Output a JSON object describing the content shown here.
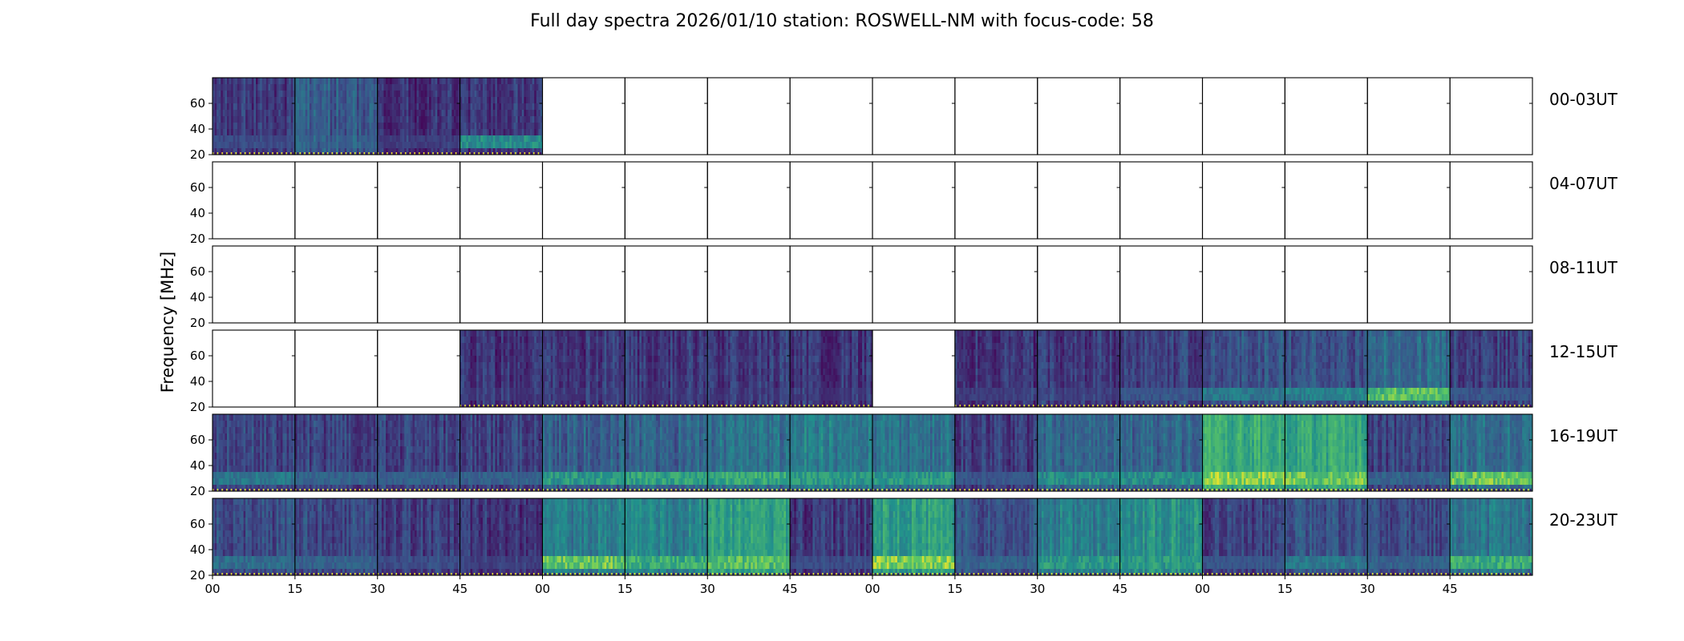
{
  "chart_data": {
    "type": "heatmap",
    "title": "Full day spectra 2026/01/10 station: ROSWELL-NM with focus-code: 58",
    "ylabel": "Frequency [MHz]",
    "xlabel": "",
    "ylim": [
      20,
      80
    ],
    "y_ticks": [
      "20",
      "40",
      "60"
    ],
    "x_tick_labels": [
      "00",
      "15",
      "30",
      "45",
      "00",
      "15",
      "30",
      "45",
      "00",
      "15",
      "30",
      "45",
      "00",
      "15",
      "30",
      "45"
    ],
    "colormap": "viridis",
    "colormap_stops": [
      "#440154",
      "#3b528b",
      "#21918c",
      "#5ec962",
      "#fde725"
    ],
    "panels_per_row": 16,
    "panel_minutes": 15,
    "rows": [
      {
        "label": "00-03UT",
        "panels": [
          {
            "has_data": true,
            "intensity": 0.16,
            "low_band": 0.25
          },
          {
            "has_data": true,
            "intensity": 0.28,
            "low_band": 0.3
          },
          {
            "has_data": true,
            "intensity": 0.14,
            "low_band": 0.2
          },
          {
            "has_data": true,
            "intensity": 0.16,
            "low_band": 0.55
          },
          {
            "has_data": false
          },
          {
            "has_data": false
          },
          {
            "has_data": false
          },
          {
            "has_data": false
          },
          {
            "has_data": false
          },
          {
            "has_data": false
          },
          {
            "has_data": false
          },
          {
            "has_data": false
          },
          {
            "has_data": false
          },
          {
            "has_data": false
          },
          {
            "has_data": false
          },
          {
            "has_data": false
          }
        ]
      },
      {
        "label": "04-07UT",
        "panels": [
          {
            "has_data": false
          },
          {
            "has_data": false
          },
          {
            "has_data": false
          },
          {
            "has_data": false
          },
          {
            "has_data": false
          },
          {
            "has_data": false
          },
          {
            "has_data": false
          },
          {
            "has_data": false
          },
          {
            "has_data": false
          },
          {
            "has_data": false
          },
          {
            "has_data": false
          },
          {
            "has_data": false
          },
          {
            "has_data": false
          },
          {
            "has_data": false
          },
          {
            "has_data": false
          },
          {
            "has_data": false
          }
        ]
      },
      {
        "label": "08-11UT",
        "panels": [
          {
            "has_data": false
          },
          {
            "has_data": false
          },
          {
            "has_data": false
          },
          {
            "has_data": false
          },
          {
            "has_data": false
          },
          {
            "has_data": false
          },
          {
            "has_data": false
          },
          {
            "has_data": false
          },
          {
            "has_data": false
          },
          {
            "has_data": false
          },
          {
            "has_data": false
          },
          {
            "has_data": false
          },
          {
            "has_data": false
          },
          {
            "has_data": false
          },
          {
            "has_data": false
          },
          {
            "has_data": false
          }
        ]
      },
      {
        "label": "12-15UT",
        "panels": [
          {
            "has_data": false
          },
          {
            "has_data": false
          },
          {
            "has_data": false
          },
          {
            "has_data": true,
            "intensity": 0.14,
            "low_band": 0.15
          },
          {
            "has_data": true,
            "intensity": 0.16,
            "low_band": 0.15
          },
          {
            "has_data": true,
            "intensity": 0.17,
            "low_band": 0.15
          },
          {
            "has_data": true,
            "intensity": 0.17,
            "low_band": 0.15
          },
          {
            "has_data": true,
            "intensity": 0.16,
            "low_band": 0.15
          },
          {
            "has_data": false
          },
          {
            "has_data": true,
            "intensity": 0.16,
            "low_band": 0.2
          },
          {
            "has_data": true,
            "intensity": 0.17,
            "low_band": 0.2
          },
          {
            "has_data": true,
            "intensity": 0.2,
            "low_band": 0.3
          },
          {
            "has_data": true,
            "intensity": 0.26,
            "low_band": 0.45
          },
          {
            "has_data": true,
            "intensity": 0.25,
            "low_band": 0.5
          },
          {
            "has_data": true,
            "intensity": 0.34,
            "low_band": 0.8
          },
          {
            "has_data": true,
            "intensity": 0.2,
            "low_band": 0.3
          }
        ]
      },
      {
        "label": "16-19UT",
        "panels": [
          {
            "has_data": true,
            "intensity": 0.22,
            "low_band": 0.45
          },
          {
            "has_data": true,
            "intensity": 0.2,
            "low_band": 0.35
          },
          {
            "has_data": true,
            "intensity": 0.2,
            "low_band": 0.35
          },
          {
            "has_data": true,
            "intensity": 0.2,
            "low_band": 0.35
          },
          {
            "has_data": true,
            "intensity": 0.3,
            "low_band": 0.6
          },
          {
            "has_data": true,
            "intensity": 0.32,
            "low_band": 0.65
          },
          {
            "has_data": true,
            "intensity": 0.36,
            "low_band": 0.7
          },
          {
            "has_data": true,
            "intensity": 0.42,
            "low_band": 0.6
          },
          {
            "has_data": true,
            "intensity": 0.38,
            "low_band": 0.6
          },
          {
            "has_data": true,
            "intensity": 0.18,
            "low_band": 0.3
          },
          {
            "has_data": true,
            "intensity": 0.34,
            "low_band": 0.55
          },
          {
            "has_data": true,
            "intensity": 0.33,
            "low_band": 0.55
          },
          {
            "has_data": true,
            "intensity": 0.62,
            "low_band": 0.92
          },
          {
            "has_data": true,
            "intensity": 0.58,
            "low_band": 0.85
          },
          {
            "has_data": true,
            "intensity": 0.2,
            "low_band": 0.35
          },
          {
            "has_data": true,
            "intensity": 0.36,
            "low_band": 0.85
          }
        ]
      },
      {
        "label": "20-23UT",
        "panels": [
          {
            "has_data": true,
            "intensity": 0.24,
            "low_band": 0.4
          },
          {
            "has_data": true,
            "intensity": 0.22,
            "low_band": 0.35
          },
          {
            "has_data": true,
            "intensity": 0.18,
            "low_band": 0.25
          },
          {
            "has_data": true,
            "intensity": 0.16,
            "low_band": 0.2
          },
          {
            "has_data": true,
            "intensity": 0.42,
            "low_band": 0.85
          },
          {
            "has_data": true,
            "intensity": 0.44,
            "low_band": 0.7
          },
          {
            "has_data": true,
            "intensity": 0.56,
            "low_band": 0.8
          },
          {
            "has_data": true,
            "intensity": 0.17,
            "low_band": 0.25
          },
          {
            "has_data": true,
            "intensity": 0.55,
            "low_band": 0.9
          },
          {
            "has_data": true,
            "intensity": 0.26,
            "low_band": 0.35
          },
          {
            "has_data": true,
            "intensity": 0.42,
            "low_band": 0.6
          },
          {
            "has_data": true,
            "intensity": 0.5,
            "low_band": 0.6
          },
          {
            "has_data": true,
            "intensity": 0.2,
            "low_band": 0.3
          },
          {
            "has_data": true,
            "intensity": 0.26,
            "low_band": 0.45
          },
          {
            "has_data": true,
            "intensity": 0.22,
            "low_band": 0.35
          },
          {
            "has_data": true,
            "intensity": 0.38,
            "low_band": 0.7
          }
        ]
      }
    ]
  }
}
